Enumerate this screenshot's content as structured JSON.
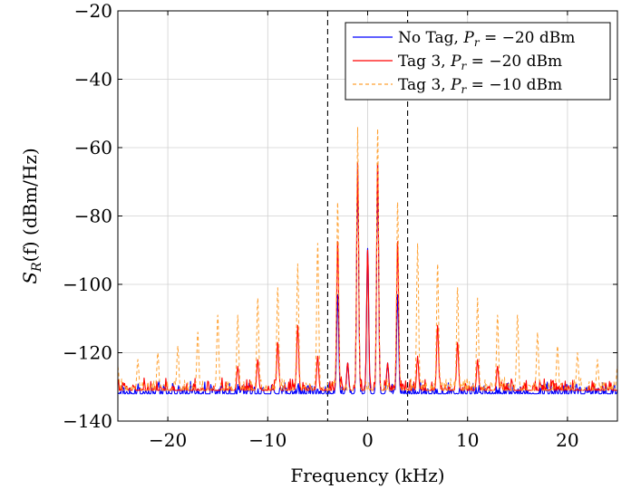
{
  "chart_data": {
    "type": "line",
    "title": "",
    "xlabel": "Frequency (kHz)",
    "ylabel": "S_R(f) (dBm/Hz)",
    "ylabel_parts": {
      "main": "S",
      "sub": "R",
      "rest": "(f) (dBm/Hz)"
    },
    "xlim": [
      -25,
      25
    ],
    "ylim": [
      -140,
      -20
    ],
    "xticks": [
      -20,
      -10,
      0,
      10,
      20
    ],
    "yticks": [
      -140,
      -120,
      -100,
      -80,
      -60,
      -40,
      -20
    ],
    "xtick_labels": [
      "−20",
      "−10",
      "0",
      "10",
      "20"
    ],
    "ytick_labels": [
      "−140",
      "−120",
      "−100",
      "−80",
      "−60",
      "−40",
      "−20"
    ],
    "grid": true,
    "legend_position": "top-right",
    "vlines": [
      -4,
      4
    ],
    "series": [
      {
        "name": "No Tag, Pr = −20 dBm",
        "legend": {
          "pre": "No Tag, ",
          "sym": "P",
          "sub": "r",
          "post": " = −20 dBm"
        },
        "color": "#0000ff",
        "dash": "solid",
        "noise_floor": -132,
        "peaks": [
          [
            -3,
            -103
          ],
          [
            -2,
            -123
          ],
          [
            -1,
            -64.5
          ],
          [
            0,
            -89.5
          ],
          [
            1,
            -64.5
          ],
          [
            2,
            -123
          ],
          [
            3,
            -103
          ]
        ]
      },
      {
        "name": "Tag 3, Pr = −20 dBm",
        "legend": {
          "pre": "Tag 3, ",
          "sym": "P",
          "sub": "r",
          "post": " = −20 dBm"
        },
        "color": "#ff0000",
        "dash": "solid",
        "noise_floor": -131,
        "peaks": [
          [
            -13,
            -124
          ],
          [
            -11,
            -122
          ],
          [
            -9,
            -117
          ],
          [
            -7,
            -112
          ],
          [
            -5,
            -121
          ],
          [
            -3,
            -87.5
          ],
          [
            -2,
            -123
          ],
          [
            -1,
            -64.5
          ],
          [
            0,
            -90
          ],
          [
            1,
            -64.5
          ],
          [
            2,
            -123
          ],
          [
            3,
            -87.5
          ],
          [
            5,
            -121
          ],
          [
            7,
            -112
          ],
          [
            9,
            -117
          ],
          [
            11,
            -122
          ],
          [
            13,
            -124
          ]
        ]
      },
      {
        "name": "Tag 3, Pr = −10 dBm",
        "legend": {
          "pre": "Tag 3, ",
          "sym": "P",
          "sub": "r",
          "post": " = −10 dBm"
        },
        "color": "#ffa030",
        "dash": "dashed",
        "noise_floor": -131,
        "peaks": [
          [
            -25,
            -124
          ],
          [
            -23,
            -122
          ],
          [
            -21,
            -120
          ],
          [
            -19,
            -118
          ],
          [
            -17,
            -114
          ],
          [
            -15,
            -109
          ],
          [
            -13,
            -109
          ],
          [
            -11,
            -104
          ],
          [
            -9,
            -101
          ],
          [
            -7,
            -94
          ],
          [
            -5,
            -88
          ],
          [
            -3,
            -76
          ],
          [
            -1,
            -54
          ],
          [
            1,
            -54.5
          ],
          [
            3,
            -76
          ],
          [
            5,
            -88
          ],
          [
            7,
            -94
          ],
          [
            9,
            -101
          ],
          [
            11,
            -104
          ],
          [
            13,
            -109
          ],
          [
            15,
            -109
          ],
          [
            17,
            -114
          ],
          [
            19,
            -118
          ],
          [
            21,
            -120
          ],
          [
            23,
            -122
          ],
          [
            25,
            -124
          ]
        ]
      }
    ]
  }
}
